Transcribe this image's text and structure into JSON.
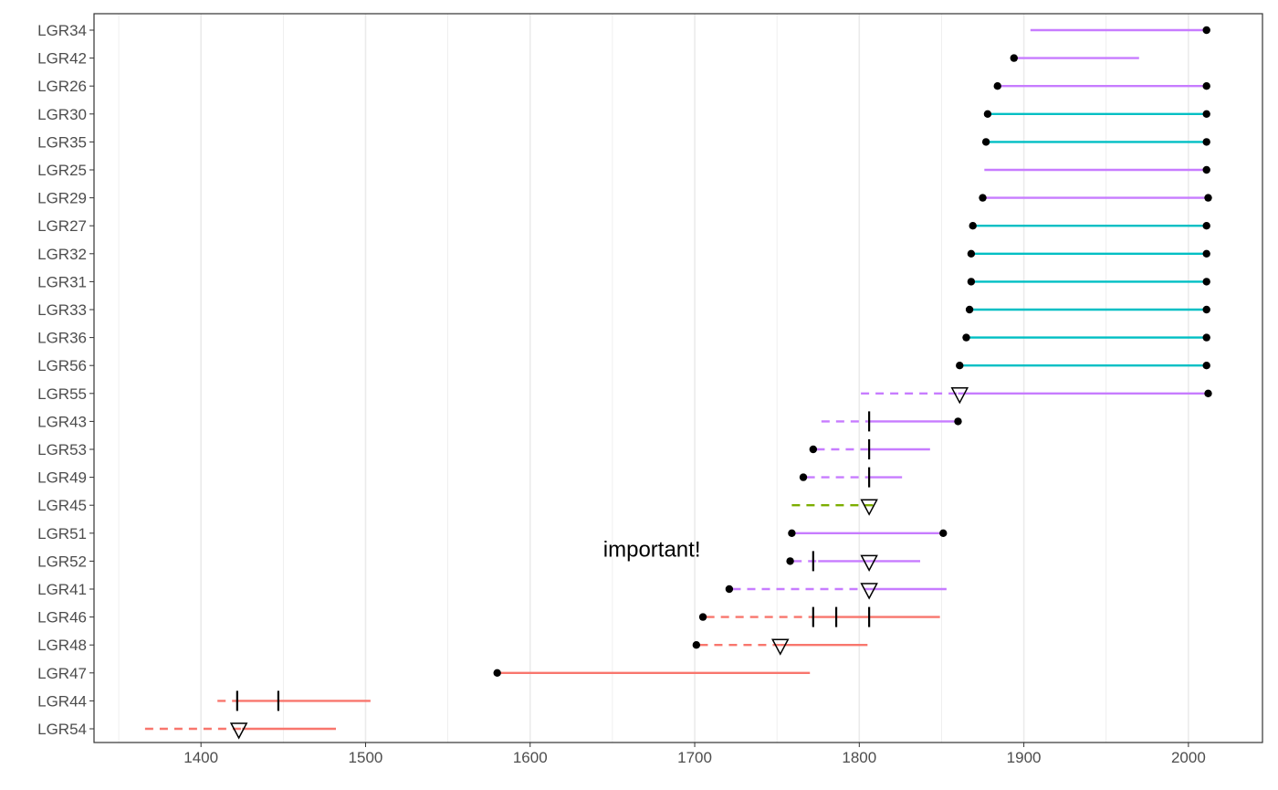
{
  "chart_data": {
    "type": "timeline",
    "xlim": [
      1335,
      2045
    ],
    "x_ticks": [
      1400,
      1500,
      1600,
      1700,
      1800,
      1900,
      2000
    ],
    "grid": "vertical",
    "annotation": {
      "text": "important!",
      "x": 1674,
      "row": "LGR52"
    },
    "colors": {
      "red": "#f8766d",
      "green": "#7cae00",
      "teal": "#00bfc4",
      "purple": "#c77cff"
    },
    "rows": [
      {
        "label": "LGR54",
        "segments": [
          {
            "from": 1366,
            "to": 1425,
            "style": "dashed",
            "color": "red"
          },
          {
            "from": 1425,
            "to": 1482,
            "style": "solid",
            "color": "red"
          }
        ],
        "dots": [],
        "ticks": [],
        "triangles": [
          1423
        ]
      },
      {
        "label": "LGR44",
        "segments": [
          {
            "from": 1410,
            "to": 1421,
            "style": "dashed",
            "color": "red"
          },
          {
            "from": 1421,
            "to": 1503,
            "style": "solid",
            "color": "red"
          }
        ],
        "dots": [],
        "ticks": [
          1422,
          1447
        ],
        "triangles": []
      },
      {
        "label": "LGR47",
        "segments": [
          {
            "from": 1580,
            "to": 1770,
            "style": "solid",
            "color": "red"
          }
        ],
        "dots": [
          1580
        ],
        "ticks": [],
        "triangles": []
      },
      {
        "label": "LGR48",
        "segments": [
          {
            "from": 1703,
            "to": 1752,
            "style": "dashed",
            "color": "red"
          },
          {
            "from": 1752,
            "to": 1805,
            "style": "solid",
            "color": "red"
          }
        ],
        "dots": [
          1701
        ],
        "ticks": [],
        "triangles": [
          1752
        ]
      },
      {
        "label": "LGR46",
        "segments": [
          {
            "from": 1707,
            "to": 1770,
            "style": "dashed",
            "color": "red"
          },
          {
            "from": 1770,
            "to": 1849,
            "style": "solid",
            "color": "red"
          }
        ],
        "dots": [
          1705
        ],
        "ticks": [
          1772,
          1786,
          1806
        ],
        "triangles": []
      },
      {
        "label": "LGR41",
        "segments": [
          {
            "from": 1723,
            "to": 1806,
            "style": "dashed",
            "color": "purple"
          },
          {
            "from": 1806,
            "to": 1853,
            "style": "solid",
            "color": "purple"
          }
        ],
        "dots": [
          1721
        ],
        "ticks": [],
        "triangles": [
          1806
        ]
      },
      {
        "label": "LGR52",
        "segments": [
          {
            "from": 1760,
            "to": 1775,
            "style": "dashed",
            "color": "purple"
          },
          {
            "from": 1775,
            "to": 1837,
            "style": "solid",
            "color": "purple"
          }
        ],
        "dots": [
          1758
        ],
        "ticks": [
          1772
        ],
        "triangles": [
          1806
        ]
      },
      {
        "label": "LGR51",
        "segments": [
          {
            "from": 1760,
            "to": 1851,
            "style": "solid",
            "color": "purple"
          }
        ],
        "dots": [
          1759,
          1851
        ],
        "ticks": [],
        "triangles": []
      },
      {
        "label": "LGR45",
        "segments": [
          {
            "from": 1759,
            "to": 1809,
            "style": "dashed",
            "color": "green"
          }
        ],
        "dots": [],
        "ticks": [],
        "triangles": [
          1806
        ]
      },
      {
        "label": "LGR49",
        "segments": [
          {
            "from": 1768,
            "to": 1805,
            "style": "dashed",
            "color": "purple"
          },
          {
            "from": 1805,
            "to": 1826,
            "style": "solid",
            "color": "purple"
          }
        ],
        "dots": [
          1766
        ],
        "ticks": [
          1806
        ],
        "triangles": []
      },
      {
        "label": "LGR53",
        "segments": [
          {
            "from": 1774,
            "to": 1805,
            "style": "dashed",
            "color": "purple"
          },
          {
            "from": 1805,
            "to": 1843,
            "style": "solid",
            "color": "purple"
          }
        ],
        "dots": [
          1772
        ],
        "ticks": [
          1806
        ],
        "triangles": []
      },
      {
        "label": "LGR43",
        "segments": [
          {
            "from": 1777,
            "to": 1805,
            "style": "dashed",
            "color": "purple"
          },
          {
            "from": 1805,
            "to": 1860,
            "style": "solid",
            "color": "purple"
          }
        ],
        "dots": [
          1860
        ],
        "ticks": [
          1806
        ],
        "triangles": []
      },
      {
        "label": "LGR55",
        "segments": [
          {
            "from": 1801,
            "to": 1860,
            "style": "dashed",
            "color": "purple"
          },
          {
            "from": 1860,
            "to": 2012,
            "style": "solid",
            "color": "purple"
          }
        ],
        "dots": [
          2012
        ],
        "ticks": [],
        "triangles": [
          1861
        ]
      },
      {
        "label": "LGR56",
        "segments": [
          {
            "from": 1861,
            "to": 2011,
            "style": "solid",
            "color": "teal"
          }
        ],
        "dots": [
          1861,
          2011
        ],
        "ticks": [],
        "triangles": []
      },
      {
        "label": "LGR36",
        "segments": [
          {
            "from": 1865,
            "to": 2011,
            "style": "solid",
            "color": "teal"
          }
        ],
        "dots": [
          1865,
          2011
        ],
        "ticks": [],
        "triangles": []
      },
      {
        "label": "LGR33",
        "segments": [
          {
            "from": 1867,
            "to": 2011,
            "style": "solid",
            "color": "teal"
          }
        ],
        "dots": [
          1867,
          2011
        ],
        "ticks": [],
        "triangles": []
      },
      {
        "label": "LGR31",
        "segments": [
          {
            "from": 1868,
            "to": 2011,
            "style": "solid",
            "color": "teal"
          }
        ],
        "dots": [
          1868,
          2011
        ],
        "ticks": [],
        "triangles": []
      },
      {
        "label": "LGR32",
        "segments": [
          {
            "from": 1868,
            "to": 2011,
            "style": "solid",
            "color": "teal"
          }
        ],
        "dots": [
          1868,
          2011
        ],
        "ticks": [],
        "triangles": []
      },
      {
        "label": "LGR27",
        "segments": [
          {
            "from": 1869,
            "to": 2011,
            "style": "solid",
            "color": "teal"
          }
        ],
        "dots": [
          1869,
          2011
        ],
        "ticks": [],
        "triangles": []
      },
      {
        "label": "LGR29",
        "segments": [
          {
            "from": 1875,
            "to": 2012,
            "style": "solid",
            "color": "purple"
          }
        ],
        "dots": [
          1875,
          2012
        ],
        "ticks": [],
        "triangles": []
      },
      {
        "label": "LGR25",
        "segments": [
          {
            "from": 1876,
            "to": 2011,
            "style": "solid",
            "color": "purple"
          }
        ],
        "dots": [
          2011
        ],
        "ticks": [],
        "triangles": []
      },
      {
        "label": "LGR35",
        "segments": [
          {
            "from": 1877,
            "to": 2011,
            "style": "solid",
            "color": "teal"
          }
        ],
        "dots": [
          1877,
          2011
        ],
        "ticks": [],
        "triangles": []
      },
      {
        "label": "LGR30",
        "segments": [
          {
            "from": 1878,
            "to": 2011,
            "style": "solid",
            "color": "teal"
          }
        ],
        "dots": [
          1878,
          2011
        ],
        "ticks": [],
        "triangles": []
      },
      {
        "label": "LGR26",
        "segments": [
          {
            "from": 1884,
            "to": 2011,
            "style": "solid",
            "color": "purple"
          }
        ],
        "dots": [
          1884,
          2011
        ],
        "ticks": [],
        "triangles": []
      },
      {
        "label": "LGR42",
        "segments": [
          {
            "from": 1894,
            "to": 1970,
            "style": "solid",
            "color": "purple"
          }
        ],
        "dots": [
          1894
        ],
        "ticks": [],
        "triangles": []
      },
      {
        "label": "LGR34",
        "segments": [
          {
            "from": 1904,
            "to": 2011,
            "style": "solid",
            "color": "purple"
          }
        ],
        "dots": [
          2011
        ],
        "ticks": [],
        "triangles": []
      }
    ]
  }
}
